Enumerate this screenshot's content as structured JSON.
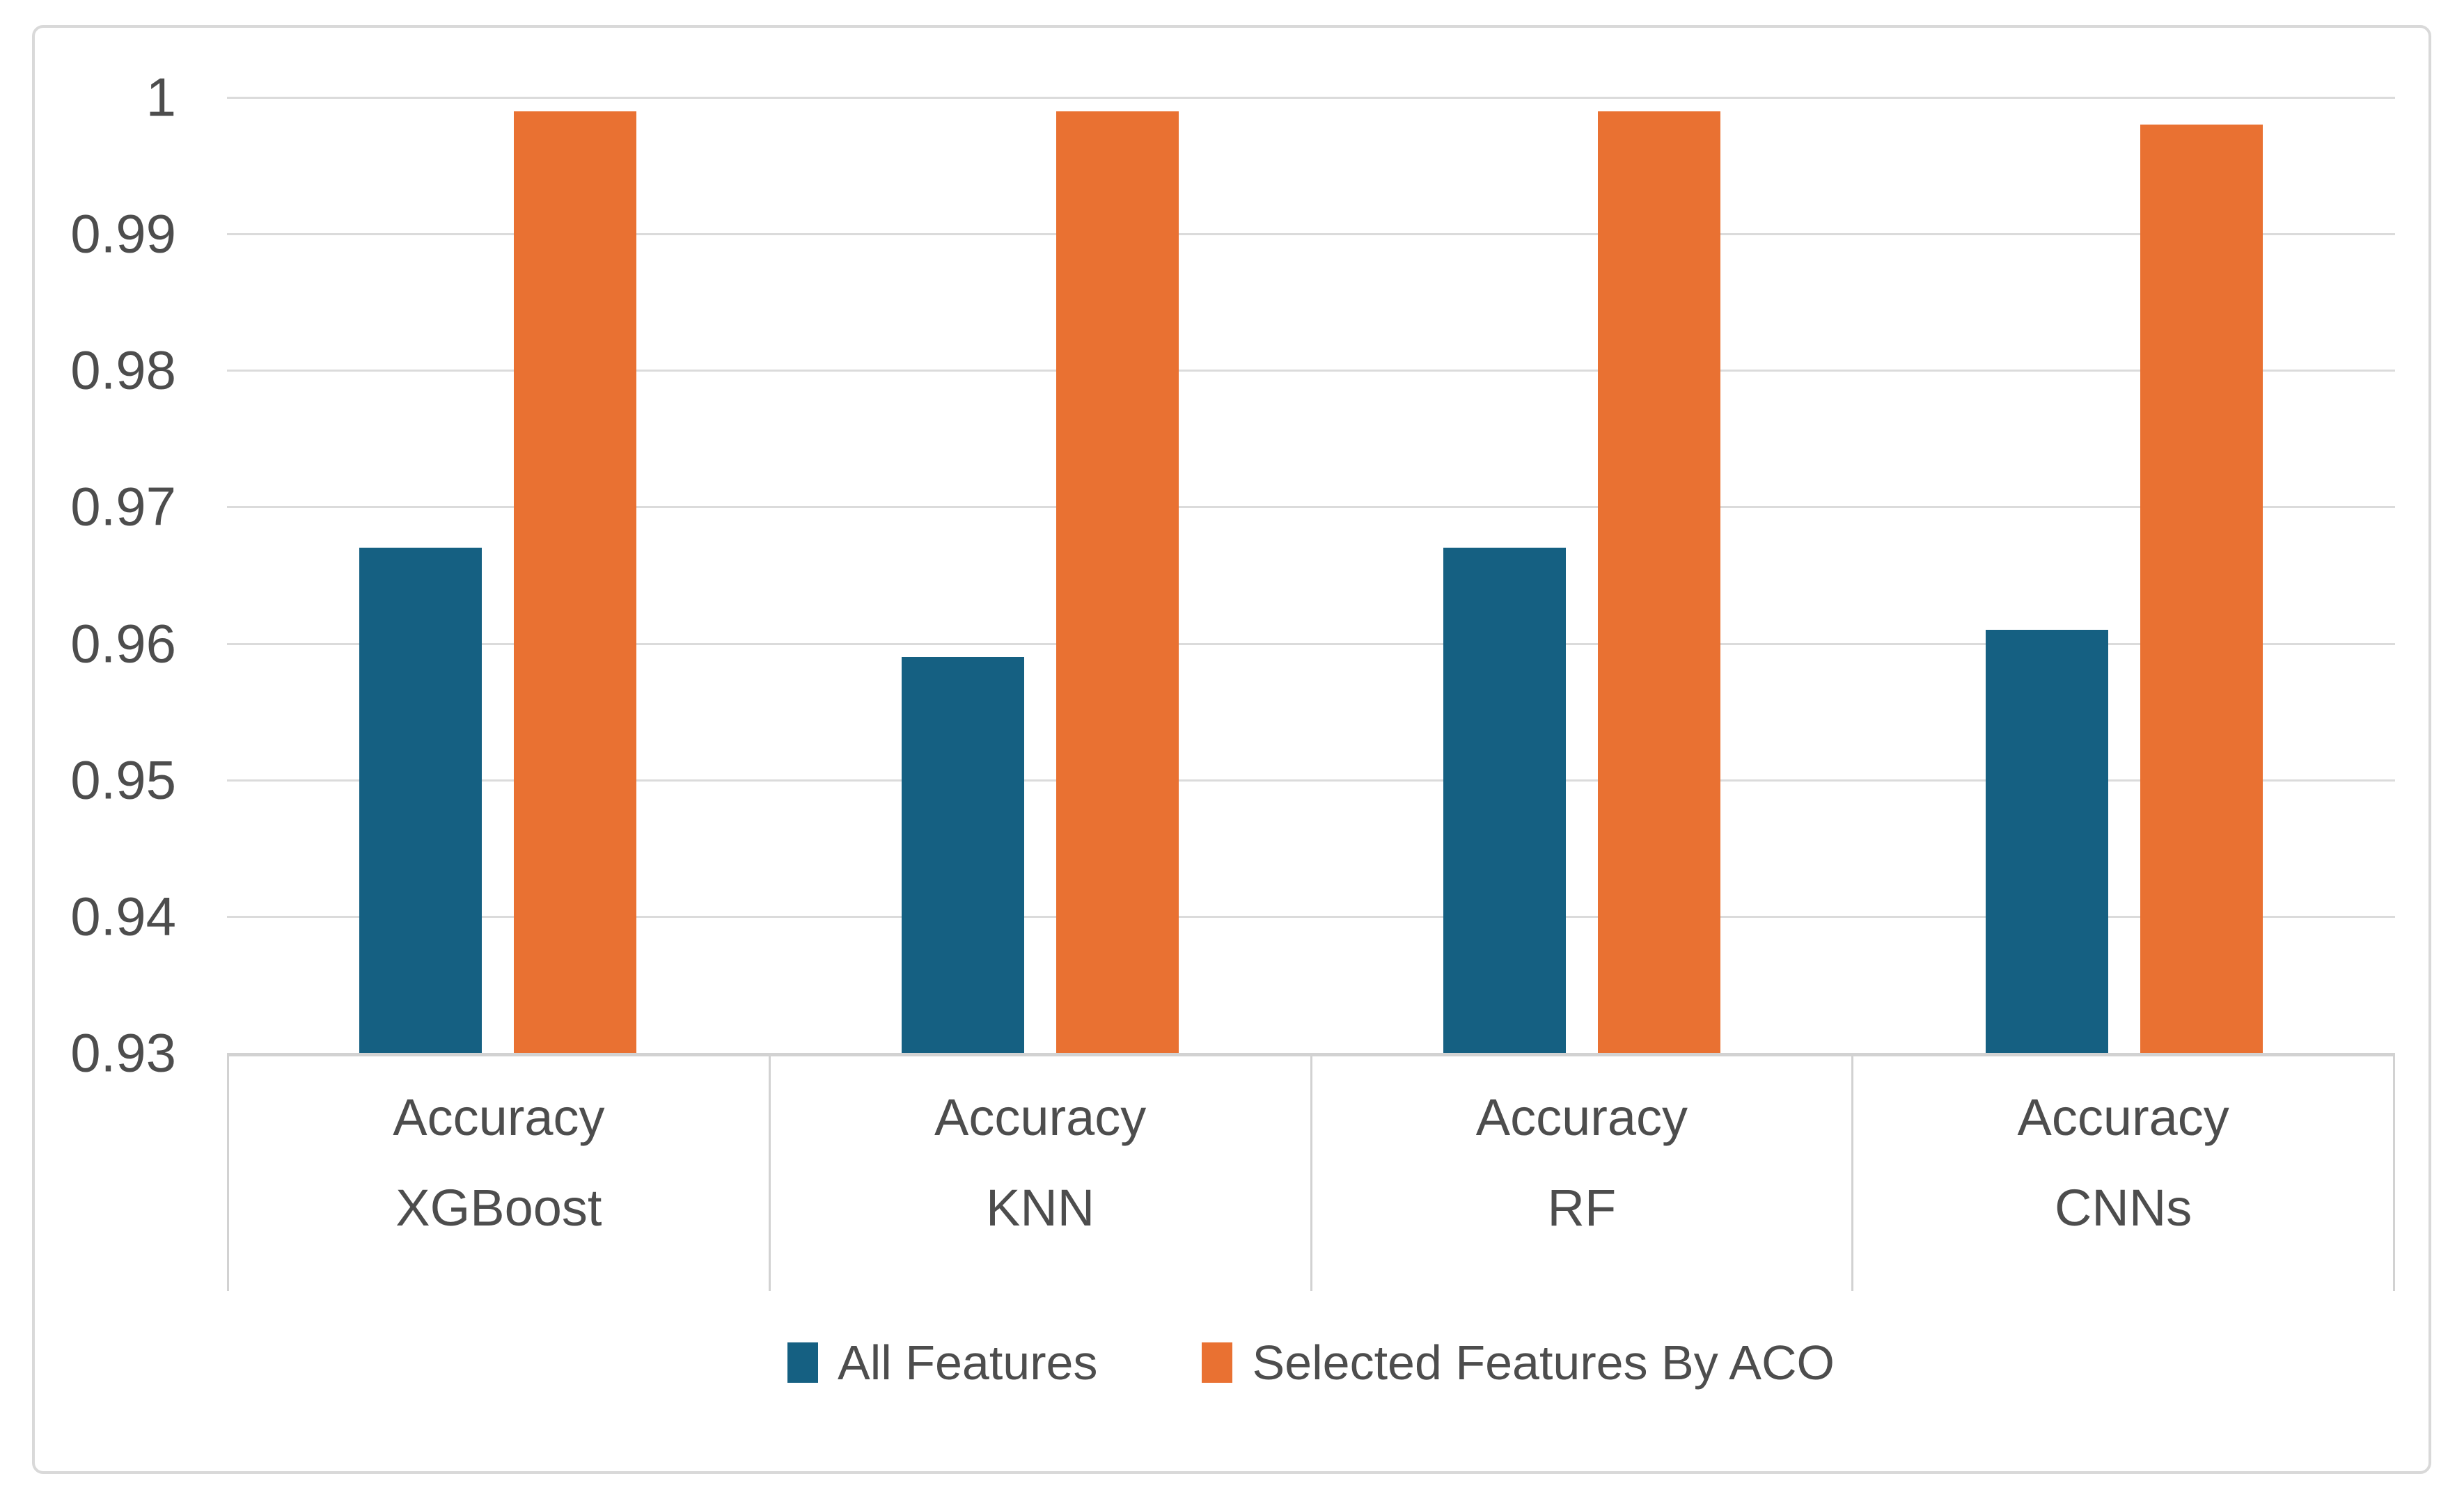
{
  "chart_data": {
    "type": "bar",
    "categories": [
      {
        "metric": "Accuracy",
        "model": "XGBoost"
      },
      {
        "metric": "Accuracy",
        "model": "KNN"
      },
      {
        "metric": "Accuracy",
        "model": "RF"
      },
      {
        "metric": "Accuracy",
        "model": "CNNs"
      }
    ],
    "series": [
      {
        "name": "All Features",
        "color": "#156082",
        "values": [
          0.967,
          0.959,
          0.967,
          0.961
        ]
      },
      {
        "name": "Selected Features By ACO",
        "color": "#E97132",
        "values": [
          0.999,
          0.999,
          0.999,
          0.998
        ]
      }
    ],
    "y_axis": {
      "min": 0.93,
      "max": 1.0,
      "tick_step": 0.01,
      "ticks": [
        {
          "label": "1",
          "value": 1.0
        },
        {
          "label": "0.99",
          "value": 0.99
        },
        {
          "label": "0.98",
          "value": 0.98
        },
        {
          "label": "0.97",
          "value": 0.97
        },
        {
          "label": "0.96",
          "value": 0.96
        },
        {
          "label": "0.95",
          "value": 0.95
        },
        {
          "label": "0.94",
          "value": 0.94
        },
        {
          "label": "0.93",
          "value": 0.93
        }
      ]
    },
    "legend": {
      "position": "bottom",
      "entries": [
        "All Features",
        "Selected Features By ACO"
      ]
    },
    "grid": true
  },
  "style": {
    "background": "#FFFFFF",
    "frame_border_color": "#D9D9D9",
    "gridline_color": "#DBDBDB",
    "axis_line_color": "#D2D2D2",
    "text_color": "#4D4D4D",
    "series_blue": "#156082",
    "series_orange": "#E97132"
  }
}
